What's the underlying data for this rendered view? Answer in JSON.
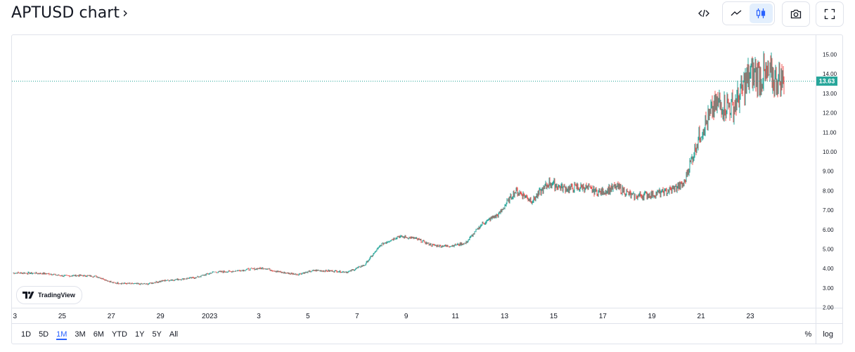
{
  "header": {
    "title": "APTUSD chart",
    "chevron": "›"
  },
  "toolbar": {
    "embed_icon": "code-embed-icon",
    "line_icon": "line-chart-icon",
    "candle_icon": "candlestick-icon",
    "snapshot_icon": "camera-icon",
    "fullscreen_icon": "fullscreen-icon"
  },
  "logo": {
    "text": "TradingView"
  },
  "ranges": [
    "1D",
    "5D",
    "1M",
    "3M",
    "6M",
    "YTD",
    "1Y",
    "5Y",
    "All"
  ],
  "active_range": "1M",
  "scale_toggles": {
    "percent": "%",
    "log": "log"
  },
  "colors": {
    "up": "#26a69a",
    "down": "#ef5350",
    "last_price": "#26a69a"
  },
  "chart_data": {
    "type": "candlestick",
    "symbol": "APTUSD",
    "x_ticks": [
      "3",
      "25",
      "27",
      "29",
      "2023",
      "3",
      "5",
      "7",
      "9",
      "11",
      "13",
      "15",
      "17",
      "19",
      "21",
      "23"
    ],
    "y_ticks": [
      "2.00",
      "3.00",
      "4.00",
      "5.00",
      "6.00",
      "7.00",
      "8.00",
      "9.00",
      "10.00",
      "11.00",
      "12.00",
      "13.00",
      "14.00",
      "15.00"
    ],
    "ylim": [
      2,
      15
    ],
    "last_price": 13.63,
    "last_price_label": "13.63",
    "price_path": [
      [
        "Dec 23",
        3.78
      ],
      [
        "Dec 24",
        3.76
      ],
      [
        "Dec 25",
        3.74
      ],
      [
        "Dec 26",
        3.62
      ],
      [
        "Dec 27",
        3.64
      ],
      [
        "Dec 28",
        3.6
      ],
      [
        "Dec 28 PM",
        3.26
      ],
      [
        "Dec 29",
        3.22
      ],
      [
        "Dec 30",
        3.2
      ],
      [
        "Dec 31",
        3.38
      ],
      [
        "Jan 1",
        3.45
      ],
      [
        "Jan 2",
        3.55
      ],
      [
        "Jan 2 PM",
        3.82
      ],
      [
        "Jan 3",
        3.85
      ],
      [
        "Jan 4",
        3.95
      ],
      [
        "Jan 5",
        4.02
      ],
      [
        "Jan 6",
        3.8
      ],
      [
        "Jan 7",
        3.7
      ],
      [
        "Jan 7 PM",
        3.9
      ],
      [
        "Jan 8",
        3.88
      ],
      [
        "Jan 9",
        3.82
      ],
      [
        "Jan 9 PM",
        4.2
      ],
      [
        "Jan 10",
        5.25
      ],
      [
        "Jan 10 PM",
        5.65
      ],
      [
        "Jan 11",
        5.55
      ],
      [
        "Jan 12",
        5.2
      ],
      [
        "Jan 12 PM",
        5.15
      ],
      [
        "Jan 13",
        5.3
      ],
      [
        "Jan 13 PM",
        6.3
      ],
      [
        "Jan 14",
        6.8
      ],
      [
        "Jan 14 PM",
        8.0
      ],
      [
        "Jan 15",
        7.5
      ],
      [
        "Jan 15 PM",
        8.4
      ],
      [
        "Jan 16",
        8.1
      ],
      [
        "Jan 17",
        8.2
      ],
      [
        "Jan 18",
        7.9
      ],
      [
        "Jan 19",
        8.2
      ],
      [
        "Jan 19 PM",
        7.7
      ],
      [
        "Jan 20",
        7.8
      ],
      [
        "Jan 21",
        7.95
      ],
      [
        "Jan 21 PM",
        8.3
      ],
      [
        "Jan 22",
        11.0
      ],
      [
        "Jan 22 PM",
        12.5
      ],
      [
        "Jan 23",
        12.3
      ],
      [
        "Jan 23 PM",
        14.0
      ],
      [
        "Jan 24",
        13.9
      ],
      [
        "Jan 24 PM",
        13.63
      ]
    ]
  }
}
